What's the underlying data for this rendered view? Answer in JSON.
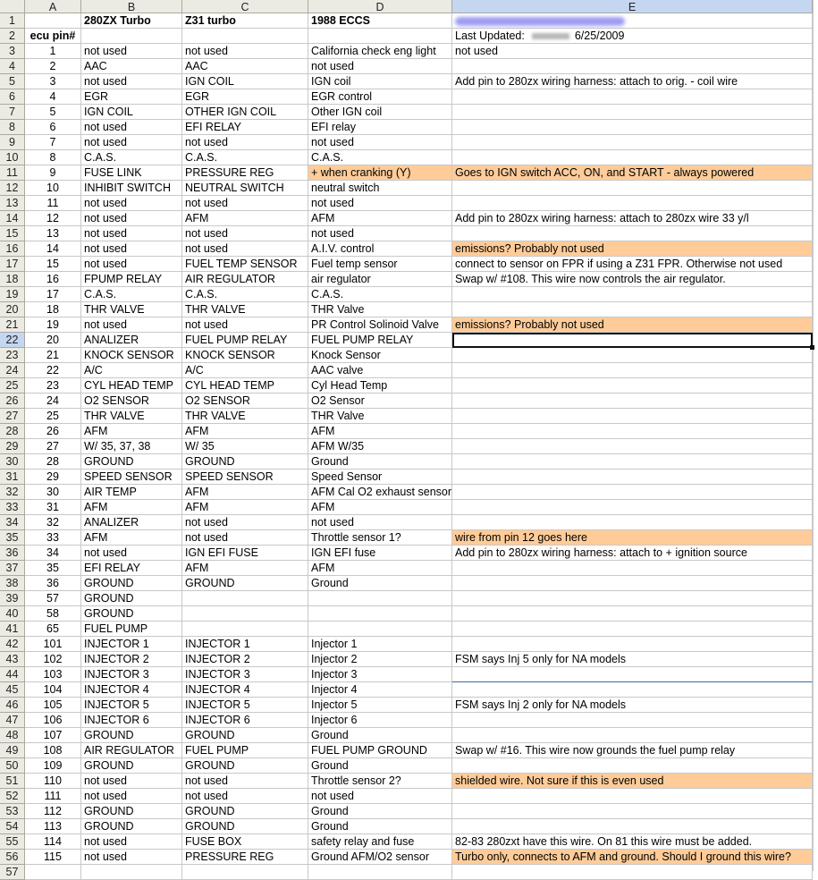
{
  "columns": [
    "A",
    "B",
    "C",
    "D",
    "E"
  ],
  "selected_cell": {
    "row": 22,
    "column": "E"
  },
  "colors": {
    "highlight": "#ffcc99",
    "selection_header": "#c4d6f0"
  },
  "header_row": {
    "b": "280ZX Turbo",
    "c": "Z31 turbo",
    "d": "1988 ECCS"
  },
  "row2": {
    "a": "ecu pin#",
    "e_label": "Last Updated:",
    "e_date": "6/25/2009"
  },
  "rows": [
    {
      "n": 3,
      "a": "1",
      "b": "not used",
      "c": "not used",
      "d": "California check eng light",
      "e": "not used"
    },
    {
      "n": 4,
      "a": "2",
      "b": "AAC",
      "c": "AAC",
      "d": "not used",
      "e": ""
    },
    {
      "n": 5,
      "a": "3",
      "b": "not used",
      "c": "IGN COIL",
      "d": "IGN coil",
      "e": "Add pin to 280zx wiring harness: attach to orig. - coil wire"
    },
    {
      "n": 6,
      "a": "4",
      "b": "EGR",
      "c": "EGR",
      "d": "EGR control",
      "e": ""
    },
    {
      "n": 7,
      "a": "5",
      "b": "IGN COIL",
      "c": "OTHER IGN COIL",
      "d": "Other IGN coil",
      "e": ""
    },
    {
      "n": 8,
      "a": "6",
      "b": "not used",
      "c": "EFI RELAY",
      "d": "EFI relay",
      "e": ""
    },
    {
      "n": 9,
      "a": "7",
      "b": "not used",
      "c": "not used",
      "d": "not used",
      "e": ""
    },
    {
      "n": 10,
      "a": "8",
      "b": "C.A.S.",
      "c": "C.A.S.",
      "d": "C.A.S.",
      "e": ""
    },
    {
      "n": 11,
      "a": "9",
      "b": "FUSE LINK",
      "c": "PRESSURE REG",
      "d": "+ when cranking (Y)",
      "e": "Goes to IGN switch ACC, ON, and START - always powered",
      "hl": [
        "d",
        "e"
      ]
    },
    {
      "n": 12,
      "a": "10",
      "b": "INHIBIT SWITCH",
      "c": "NEUTRAL SWITCH",
      "d": "neutral switch",
      "e": ""
    },
    {
      "n": 13,
      "a": "11",
      "b": "not used",
      "c": "not used",
      "d": "not used",
      "e": ""
    },
    {
      "n": 14,
      "a": "12",
      "b": "not used",
      "c": "AFM",
      "d": "AFM",
      "e": "Add pin to 280zx wiring harness: attach to 280zx wire 33 y/l"
    },
    {
      "n": 15,
      "a": "13",
      "b": "not used",
      "c": "not used",
      "d": "not used",
      "e": ""
    },
    {
      "n": 16,
      "a": "14",
      "b": "not used",
      "c": "not used",
      "d": "A.I.V. control",
      "e": "emissions? Probably not used",
      "hl": [
        "e"
      ]
    },
    {
      "n": 17,
      "a": "15",
      "b": "not used",
      "c": "FUEL TEMP SENSOR",
      "d": "Fuel temp sensor",
      "e": "connect to sensor on FPR if using a Z31 FPR. Otherwise not used"
    },
    {
      "n": 18,
      "a": "16",
      "b": "FPUMP RELAY",
      "c": "AIR REGULATOR",
      "d": "air regulator",
      "e": "Swap w/ #108. This wire now controls the air regulator."
    },
    {
      "n": 19,
      "a": "17",
      "b": "C.A.S.",
      "c": "C.A.S.",
      "d": "C.A.S.",
      "e": ""
    },
    {
      "n": 20,
      "a": "18",
      "b": "THR VALVE",
      "c": "THR VALVE",
      "d": "THR Valve",
      "e": ""
    },
    {
      "n": 21,
      "a": "19",
      "b": "not used",
      "c": "not used",
      "d": "PR Control Solinoid Valve",
      "e": "emissions? Probably not used",
      "hl": [
        "e"
      ]
    },
    {
      "n": 22,
      "a": "20",
      "b": "ANALIZER",
      "c": "FUEL PUMP RELAY",
      "d": "FUEL PUMP RELAY",
      "e": ""
    },
    {
      "n": 23,
      "a": "21",
      "b": "KNOCK SENSOR",
      "c": "KNOCK SENSOR",
      "d": "Knock Sensor",
      "e": ""
    },
    {
      "n": 24,
      "a": "22",
      "b": "A/C",
      "c": "A/C",
      "d": "AAC valve",
      "e": ""
    },
    {
      "n": 25,
      "a": "23",
      "b": "CYL HEAD TEMP",
      "c": "CYL HEAD TEMP",
      "d": "Cyl Head Temp",
      "e": ""
    },
    {
      "n": 26,
      "a": "24",
      "b": "O2 SENSOR",
      "c": "O2 SENSOR",
      "d": "O2 Sensor",
      "e": ""
    },
    {
      "n": 27,
      "a": "25",
      "b": "THR VALVE",
      "c": "THR VALVE",
      "d": "THR Valve",
      "e": ""
    },
    {
      "n": 28,
      "a": "26",
      "b": "AFM",
      "c": "AFM",
      "d": "AFM",
      "e": ""
    },
    {
      "n": 29,
      "a": "27",
      "b": "W/ 35, 37, 38",
      "c": "W/ 35",
      "d": "AFM W/35",
      "e": ""
    },
    {
      "n": 30,
      "a": "28",
      "b": "GROUND",
      "c": "GROUND",
      "d": "Ground",
      "e": ""
    },
    {
      "n": 31,
      "a": "29",
      "b": "SPEED SENSOR",
      "c": "SPEED SENSOR",
      "d": "Speed Sensor",
      "e": ""
    },
    {
      "n": 32,
      "a": "30",
      "b": "AIR TEMP",
      "c": "AFM",
      "d": "AFM Cal O2 exhaust sensor",
      "e": ""
    },
    {
      "n": 33,
      "a": "31",
      "b": "AFM",
      "c": "AFM",
      "d": "AFM",
      "e": ""
    },
    {
      "n": 34,
      "a": "32",
      "b": "ANALIZER",
      "c": "not used",
      "d": "not used",
      "e": ""
    },
    {
      "n": 35,
      "a": "33",
      "b": "AFM",
      "c": "not used",
      "d": "Throttle sensor 1?",
      "e": "wire from pin 12 goes here",
      "hl": [
        "e"
      ]
    },
    {
      "n": 36,
      "a": "34",
      "b": "not used",
      "c": "IGN EFI FUSE",
      "d": "IGN EFI fuse",
      "e": "Add pin to 280zx wiring harness: attach to + ignition source"
    },
    {
      "n": 37,
      "a": "35",
      "b": "EFI RELAY",
      "c": "AFM",
      "d": "AFM",
      "e": ""
    },
    {
      "n": 38,
      "a": "36",
      "b": "GROUND",
      "c": "GROUND",
      "d": "Ground",
      "e": ""
    },
    {
      "n": 39,
      "a": "57",
      "b": "GROUND",
      "c": "",
      "d": "",
      "e": ""
    },
    {
      "n": 40,
      "a": "58",
      "b": "GROUND",
      "c": "",
      "d": "",
      "e": ""
    },
    {
      "n": 41,
      "a": "65",
      "b": "FUEL PUMP",
      "c": "",
      "d": "",
      "e": ""
    },
    {
      "n": 42,
      "a": "101",
      "b": "INJECTOR 1",
      "c": "INJECTOR 1",
      "d": "Injector 1",
      "e": ""
    },
    {
      "n": 43,
      "a": "102",
      "b": "INJECTOR 2",
      "c": "INJECTOR 2",
      "d": "Injector 2",
      "e": "FSM says Inj 5 only for NA models"
    },
    {
      "n": 44,
      "a": "103",
      "b": "INJECTOR 3",
      "c": "INJECTOR 3",
      "d": "Injector 3",
      "e": ""
    },
    {
      "n": 45,
      "a": "104",
      "b": "INJECTOR 4",
      "c": "INJECTOR 4",
      "d": "Injector 4",
      "e": ""
    },
    {
      "n": 46,
      "a": "105",
      "b": "INJECTOR 5",
      "c": "INJECTOR 5",
      "d": "Injector 5",
      "e": "FSM says Inj 2 only for NA models"
    },
    {
      "n": 47,
      "a": "106",
      "b": "INJECTOR 6",
      "c": "INJECTOR 6",
      "d": "Injector 6",
      "e": ""
    },
    {
      "n": 48,
      "a": "107",
      "b": "GROUND",
      "c": "GROUND",
      "d": "Ground",
      "e": ""
    },
    {
      "n": 49,
      "a": "108",
      "b": "AIR REGULATOR",
      "c": "FUEL PUMP",
      "d": "FUEL PUMP GROUND",
      "e": "Swap w/ #16. This wire now grounds the fuel pump relay"
    },
    {
      "n": 50,
      "a": "109",
      "b": "GROUND",
      "c": "GROUND",
      "d": "Ground",
      "e": ""
    },
    {
      "n": 51,
      "a": "110",
      "b": "not used",
      "c": "not used",
      "d": "Throttle sensor 2?",
      "e": "shielded wire. Not sure if this is even used",
      "hl": [
        "e"
      ]
    },
    {
      "n": 52,
      "a": "111",
      "b": "not used",
      "c": "not used",
      "d": "not used",
      "e": ""
    },
    {
      "n": 53,
      "a": "112",
      "b": "GROUND",
      "c": "GROUND",
      "d": "Ground",
      "e": ""
    },
    {
      "n": 54,
      "a": "113",
      "b": "GROUND",
      "c": "GROUND",
      "d": "Ground",
      "e": ""
    },
    {
      "n": 55,
      "a": "114",
      "b": "not used",
      "c": "FUSE BOX",
      "d": "safety relay and fuse",
      "e": "82-83 280zxt have this wire. On 81 this wire must be added."
    },
    {
      "n": 56,
      "a": "115",
      "b": "not used",
      "c": "PRESSURE REG",
      "d": "Ground AFM/O2 sensor",
      "e": "Turbo only, connects to AFM and ground. Should I ground this wire?",
      "hl": [
        "e"
      ]
    },
    {
      "n": 57,
      "a": "",
      "b": "",
      "c": "",
      "d": "",
      "e": ""
    }
  ]
}
